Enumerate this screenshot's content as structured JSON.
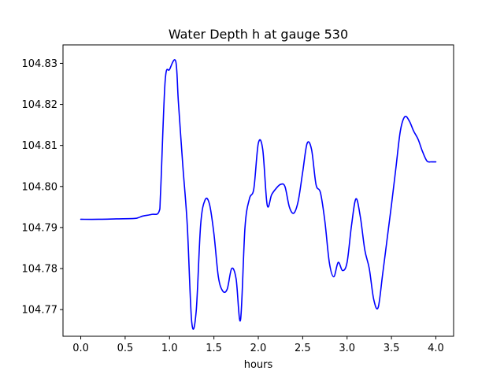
{
  "chart_data": {
    "type": "line",
    "title": "Water Depth h at gauge 530",
    "xlabel": "hours",
    "ylabel": "",
    "xlim": [
      -0.2,
      4.2
    ],
    "ylim": [
      104.7635,
      104.8345
    ],
    "xticks": [
      0.0,
      0.5,
      1.0,
      1.5,
      2.0,
      2.5,
      3.0,
      3.5,
      4.0
    ],
    "xtick_labels": [
      "0.0",
      "0.5",
      "1.0",
      "1.5",
      "2.0",
      "2.5",
      "3.0",
      "3.5",
      "4.0"
    ],
    "yticks": [
      104.77,
      104.78,
      104.79,
      104.8,
      104.81,
      104.82,
      104.83
    ],
    "ytick_labels": [
      "104.77",
      "104.78",
      "104.79",
      "104.80",
      "104.81",
      "104.82",
      "104.83"
    ],
    "grid": false,
    "series": [
      {
        "color": "#0000ff",
        "x": [
          0.0,
          0.2,
          0.4,
          0.6,
          0.65,
          0.7,
          0.8,
          0.88,
          0.9,
          0.95,
          1.0,
          1.07,
          1.1,
          1.15,
          1.2,
          1.25,
          1.3,
          1.35,
          1.4,
          1.45,
          1.5,
          1.55,
          1.6,
          1.65,
          1.7,
          1.75,
          1.8,
          1.85,
          1.9,
          1.95,
          2.0,
          2.05,
          2.1,
          2.15,
          2.2,
          2.25,
          2.3,
          2.35,
          2.4,
          2.45,
          2.5,
          2.55,
          2.6,
          2.65,
          2.7,
          2.75,
          2.8,
          2.85,
          2.9,
          2.95,
          3.0,
          3.05,
          3.1,
          3.15,
          3.2,
          3.25,
          3.3,
          3.35,
          3.4,
          3.45,
          3.5,
          3.55,
          3.6,
          3.65,
          3.7,
          3.75,
          3.8,
          3.85,
          3.9,
          3.95,
          4.0
        ],
        "y": [
          104.792,
          104.792,
          104.7921,
          104.7922,
          104.7924,
          104.7928,
          104.7932,
          104.7938,
          104.799,
          104.8255,
          104.8285,
          104.8305,
          104.8205,
          104.805,
          104.7905,
          104.767,
          104.7695,
          104.7905,
          104.7967,
          104.7957,
          104.7885,
          104.778,
          104.7745,
          104.775,
          104.78,
          104.7775,
          104.7675,
          104.79,
          104.797,
          104.7995,
          104.8105,
          104.809,
          104.7955,
          104.798,
          104.7995,
          104.8005,
          104.8,
          104.795,
          104.7935,
          104.7965,
          104.8035,
          104.8105,
          104.809,
          104.8005,
          104.7985,
          104.7915,
          104.7815,
          104.778,
          104.7815,
          104.7795,
          104.7815,
          104.7905,
          104.797,
          104.7925,
          104.7845,
          104.78,
          104.7725,
          104.7705,
          104.7785,
          104.787,
          104.7955,
          104.8045,
          104.8135,
          104.817,
          104.816,
          104.8135,
          104.8115,
          104.8085,
          104.8062,
          104.806,
          104.806
        ]
      }
    ]
  }
}
